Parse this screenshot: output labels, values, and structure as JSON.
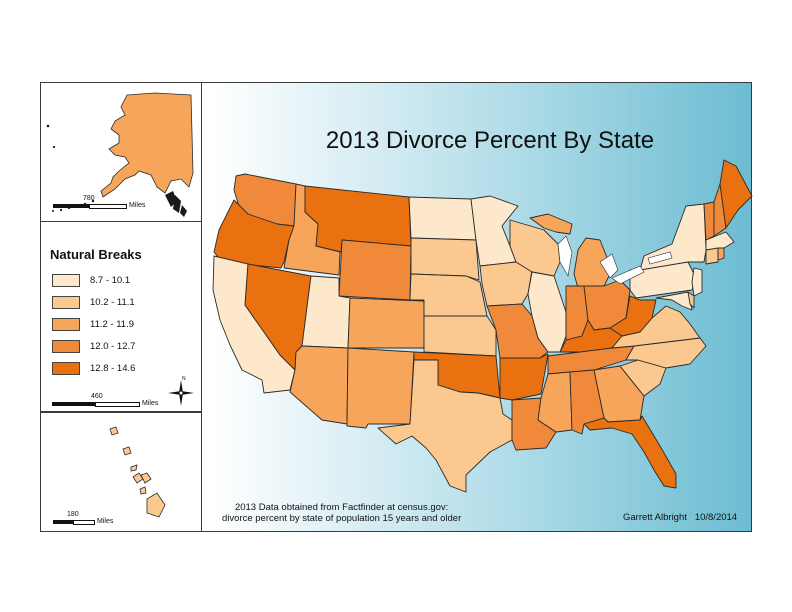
{
  "title": "2013 Divorce Percent By State",
  "legend": {
    "title": "Natural Breaks",
    "classes": [
      {
        "label": "8.7 - 10.1",
        "color": "#fde8cc"
      },
      {
        "label": "10.2 - 11.1",
        "color": "#fbc98f"
      },
      {
        "label": "11.2 - 11.9",
        "color": "#f6a55b"
      },
      {
        "label": "12.0 - 12.7",
        "color": "#f08a3a"
      },
      {
        "label": "12.8 - 14.6",
        "color": "#e9710f"
      }
    ]
  },
  "scalebars": {
    "alaska": {
      "value": "780",
      "unit": "Miles"
    },
    "conus": {
      "value": "460",
      "unit": "Miles"
    },
    "hawaii": {
      "value": "180",
      "unit": "Miles"
    }
  },
  "north_arrow": "N",
  "source_note": {
    "line1": "2013 Data obtained from Factfinder at census.gov:",
    "line2": "divorce percent by state of population 15 years and older"
  },
  "author": "Garrett Albright",
  "date": "10/8/2014",
  "states_by_class": {
    "8.7 - 10.1": [
      "California",
      "Utah",
      "North Dakota",
      "Minnesota",
      "Illinois",
      "New York",
      "Pennsylvania",
      "New Jersey",
      "Massachusetts",
      "Maryland"
    ],
    "10.2 - 11.1": [
      "South Dakota",
      "Nebraska",
      "Kansas",
      "Iowa",
      "Wisconsin",
      "Texas",
      "Virginia",
      "North Carolina",
      "South Carolina",
      "Delaware",
      "Connecticut",
      "Hawaii"
    ],
    "11.2 - 11.9": [
      "Idaho",
      "Colorado",
      "New Mexico",
      "Arizona",
      "Michigan",
      "Mississippi",
      "Georgia",
      "Rhode Island",
      "Alaska"
    ],
    "12.0 - 12.7": [
      "Washington",
      "Wyoming",
      "Missouri",
      "Louisiana",
      "Indiana",
      "Ohio",
      "Alabama",
      "Tennessee",
      "Vermont",
      "New Hampshire"
    ],
    "12.8 - 14.6": [
      "Oregon",
      "Montana",
      "Nevada",
      "Oklahoma",
      "Arkansas",
      "Kentucky",
      "West Virginia",
      "Florida",
      "Maine"
    ]
  }
}
